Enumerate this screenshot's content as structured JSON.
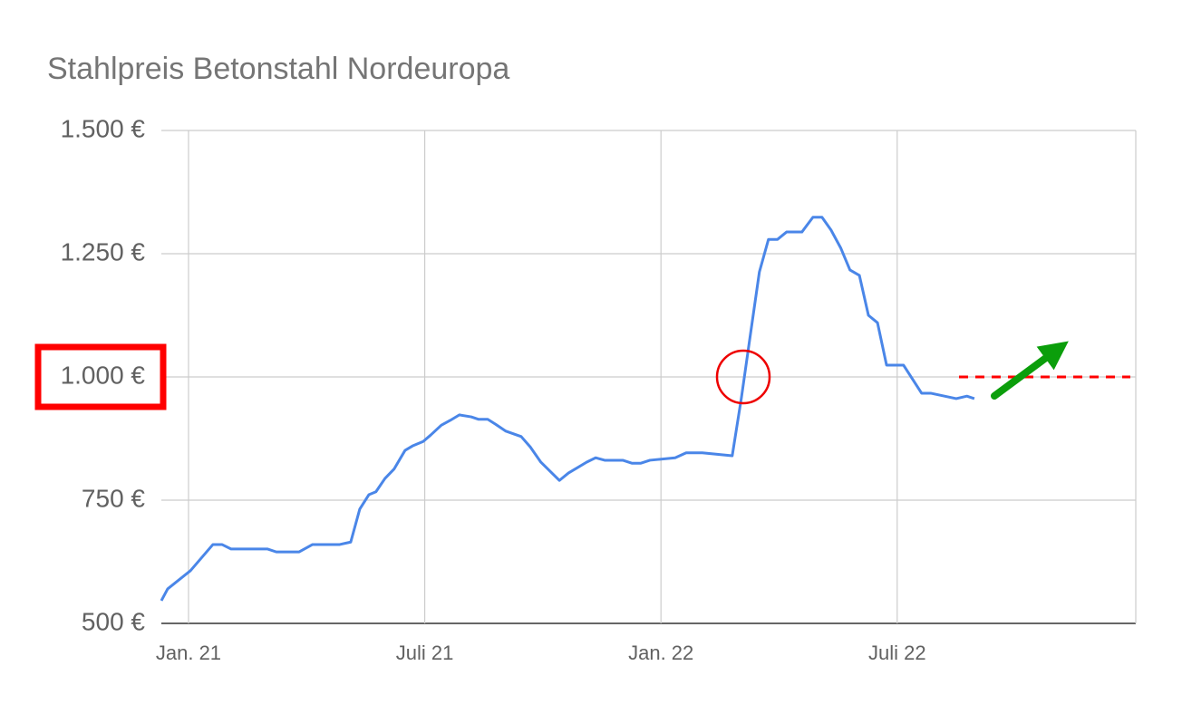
{
  "chart_data": {
    "type": "line",
    "title": "Stahlpreis Betonstahl Nordeuropa",
    "x": [
      -0.69,
      -0.53,
      0.05,
      0.62,
      0.85,
      1.08,
      2.0,
      2.23,
      2.81,
      3.15,
      3.84,
      4.12,
      4.35,
      4.58,
      4.76,
      4.99,
      5.22,
      5.5,
      5.69,
      5.96,
      6.15,
      6.42,
      6.65,
      6.88,
      7.18,
      7.37,
      7.6,
      7.8,
      8.06,
      8.45,
      8.68,
      8.95,
      9.42,
      9.65,
      10.11,
      10.34,
      10.57,
      11.03,
      11.26,
      11.49,
      11.72,
      12.36,
      12.64,
      13.05,
      13.81,
      14.04,
      14.27,
      14.5,
      14.73,
      14.96,
      15.19,
      15.58,
      15.86,
      16.09,
      16.32,
      16.57,
      16.8,
      17.04,
      17.27,
      17.5,
      17.73,
      18.16,
      18.62,
      18.85,
      19.5,
      19.77,
      19.96
    ],
    "series": [
      {
        "color": "#4a86e8",
        "values": [
          546,
          570,
          607,
          660,
          660,
          651,
          651,
          645,
          645,
          660,
          660,
          665,
          732,
          761,
          767,
          794,
          813,
          851,
          860,
          869,
          882,
          902,
          912,
          923,
          919,
          914,
          914,
          904,
          890,
          879,
          858,
          827,
          790,
          805,
          827,
          836,
          831,
          831,
          825,
          825,
          831,
          836,
          846,
          846,
          840,
          956,
          1085,
          1213,
          1279,
          1279,
          1294,
          1294,
          1324,
          1324,
          1298,
          1261,
          1217,
          1206,
          1125,
          1110,
          1024,
          1024,
          967,
          967,
          956,
          961,
          956
        ]
      }
    ],
    "xlim": [
      -0.69,
      24.06
    ],
    "xticks": [
      {
        "value": 0,
        "label": "Jan. 21"
      },
      {
        "value": 6,
        "label": "Juli 21"
      },
      {
        "value": 12,
        "label": "Jan. 22"
      },
      {
        "value": 18,
        "label": "Juli 22"
      }
    ],
    "ylim": [
      500,
      1500
    ],
    "yticks": [
      {
        "value": 500,
        "label": "500 €"
      },
      {
        "value": 750,
        "label": "750 €"
      },
      {
        "value": 1000,
        "label": "1.000 €"
      },
      {
        "value": 1250,
        "label": "1.250 €"
      },
      {
        "value": 1500,
        "label": "1.500 €"
      }
    ],
    "grid": true
  }
}
